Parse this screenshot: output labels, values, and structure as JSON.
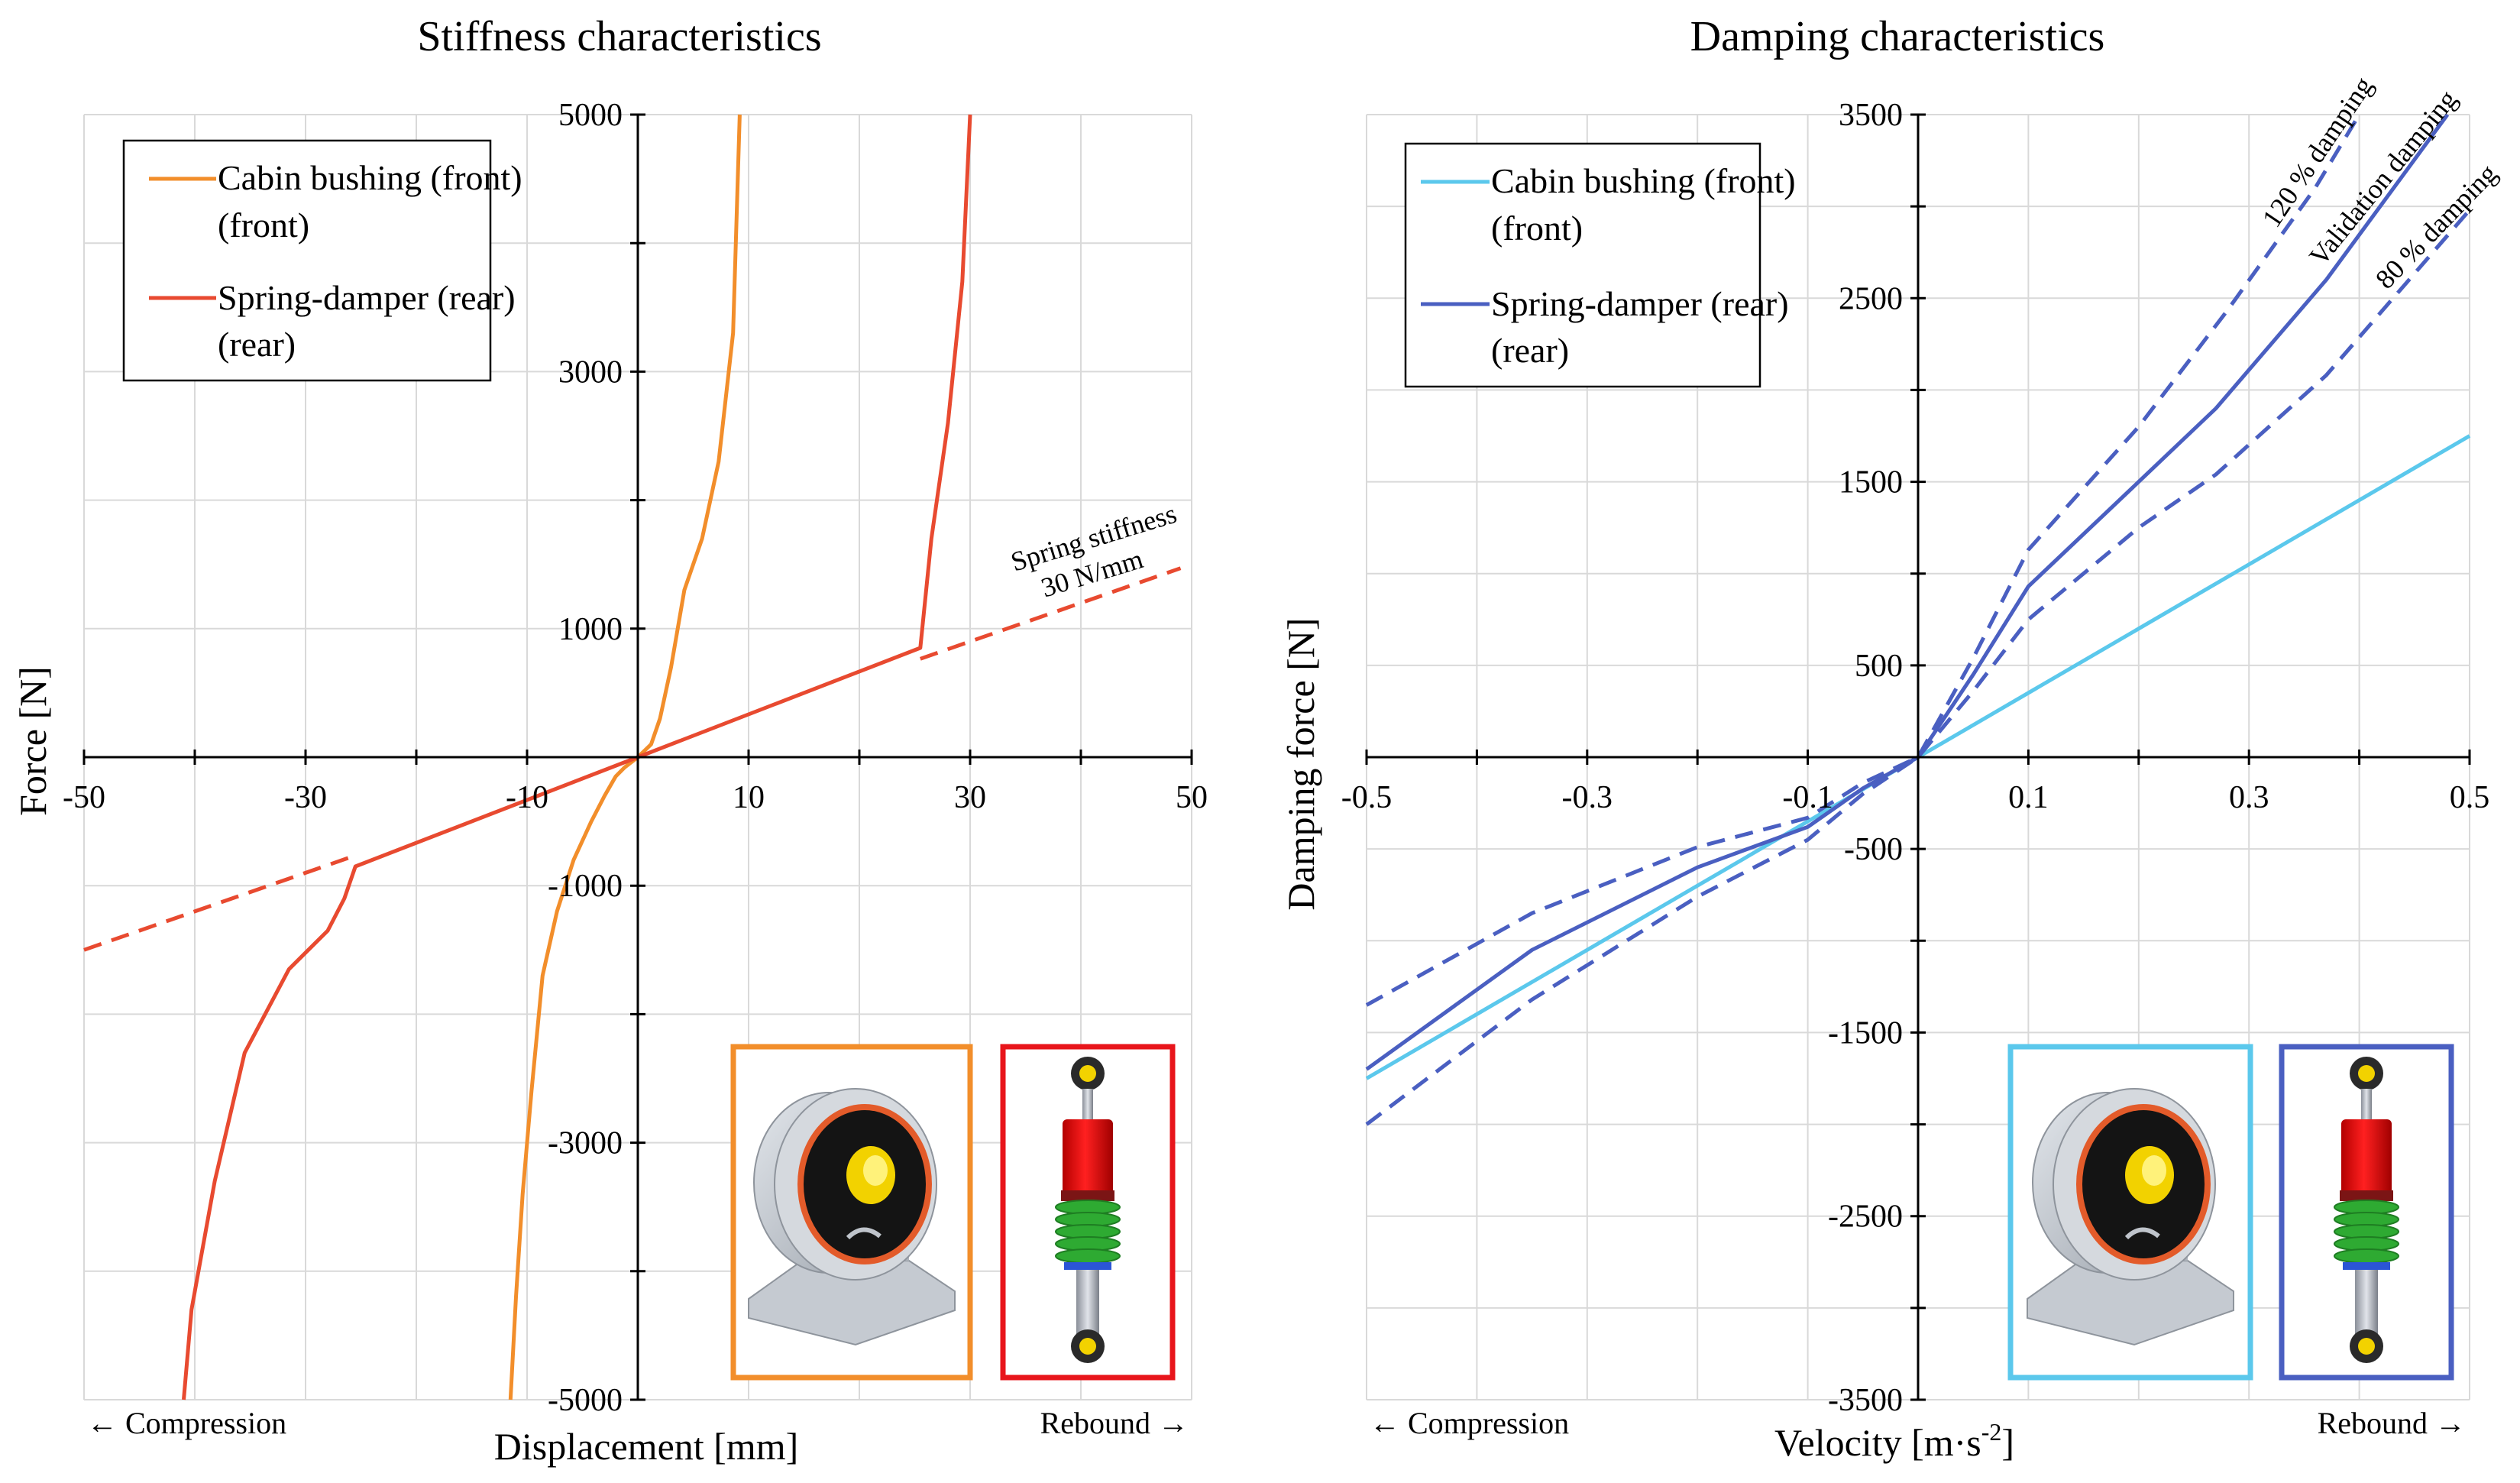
{
  "chart_data": [
    {
      "type": "line",
      "title": "Stiffness characteristics",
      "xlabel": "Displacement [mm]",
      "ylabel": "Force [N]",
      "xlim": [
        -50,
        50
      ],
      "ylim": [
        -5000,
        5000
      ],
      "xticks": [
        -50,
        -30,
        -10,
        10,
        30,
        50
      ],
      "xtick_labels": [
        "-50",
        "-30",
        "-10",
        "10",
        "30",
        "50"
      ],
      "yticks": [
        -5000,
        -3000,
        -1000,
        1000,
        3000,
        5000
      ],
      "ytick_labels": [
        "-5000",
        "-3000",
        "-1000",
        "1000",
        "3000",
        "5000"
      ],
      "x_minor_ticks": [
        -40,
        -20,
        0,
        20,
        40
      ],
      "y_minor_ticks": [
        -4000,
        -2000,
        0,
        2000,
        4000
      ],
      "grid": true,
      "direction_labels": {
        "left": "← Compression",
        "right": "Rebound →"
      },
      "legend": {
        "position": "top-left",
        "entries": [
          "Cabin bushing (front)",
          "Spring-damper (rear)"
        ]
      },
      "annotation": {
        "line1": "Spring stiffness",
        "line2": "30 N/mm"
      },
      "series": [
        {
          "name": "Cabin bushing (front)",
          "color": "#F28E2B",
          "dash": false,
          "x": [
            -11.5,
            -11.0,
            -10.4,
            -9.6,
            -8.6,
            -7.3,
            -5.8,
            -4.2,
            -3.0,
            -2.0,
            -1.2,
            0,
            1.2,
            2.0,
            3.0,
            4.2,
            5.8,
            7.3,
            8.6,
            9.2
          ],
          "y": [
            -5000,
            -4200,
            -3400,
            -2600,
            -1700,
            -1200,
            -800,
            -500,
            -300,
            -150,
            -80,
            0,
            100,
            300,
            700,
            1300,
            1700,
            2300,
            3300,
            5000
          ]
        },
        {
          "name": "Spring-damper (rear)",
          "color": "#E84A30",
          "dash": false,
          "x": [
            -41.0,
            -40.3,
            -38.2,
            -35.5,
            -31.5,
            -28.0,
            -26.5,
            -25.5,
            0,
            25.5,
            26.5,
            28.0,
            29.3,
            30.0
          ],
          "y": [
            -5000,
            -4300,
            -3300,
            -2300,
            -1650,
            -1350,
            -1100,
            -850,
            0,
            850,
            1700,
            2600,
            3700,
            5000
          ]
        },
        {
          "name": "Spring stiffness 30 N/mm",
          "color": "#E84A30",
          "dash": true,
          "x": [
            -50,
            -25.5
          ],
          "y": [
            -1500,
            -765
          ]
        },
        {
          "name": "Spring stiffness 30 N/mm (rebound)",
          "color": "#E84A30",
          "dash": true,
          "x": [
            25.5,
            49
          ],
          "y": [
            765,
            1470
          ]
        }
      ]
    },
    {
      "type": "line",
      "title": "Damping characteristics",
      "xlabel_main": "Velocity [m·s",
      "xlabel_sup": "-2",
      "xlabel_end": "]",
      "ylabel": "Damping force [N]",
      "xlim": [
        -0.5,
        0.5
      ],
      "ylim": [
        -3500,
        3500
      ],
      "xticks": [
        -0.5,
        -0.3,
        -0.1,
        0.1,
        0.3,
        0.5
      ],
      "xtick_labels": [
        "-0.5",
        "-0.3",
        "-0.1",
        "0.1",
        "0.3",
        "0.5"
      ],
      "yticks": [
        -3500,
        -2500,
        -1500,
        -500,
        500,
        1500,
        2500,
        3500
      ],
      "ytick_labels": [
        "-3500",
        "-2500",
        "-1500",
        "-500",
        "500",
        "1500",
        "2500",
        "3500"
      ],
      "x_minor_ticks": [
        -0.4,
        -0.2,
        0,
        0.2,
        0.4
      ],
      "y_minor_ticks": [
        -3000,
        -2000,
        -1000,
        0,
        1000,
        2000,
        3000
      ],
      "grid": true,
      "direction_labels": {
        "left": "← Compression",
        "right": "Rebound →"
      },
      "legend": {
        "position": "top-left",
        "entries": [
          "Cabin bushing (front)",
          "Spring-damper (rear)"
        ]
      },
      "annotations": [
        "120 % damping",
        "Validation damping",
        "80 % damping"
      ],
      "series": [
        {
          "name": "Cabin bushing (front)",
          "color": "#5BC8EC",
          "dash": false,
          "x": [
            -0.5,
            0.5
          ],
          "y": [
            -1750,
            1750
          ]
        },
        {
          "name": "Spring-damper (rear)",
          "color": "#4A5FC1",
          "dash": false,
          "x": [
            -0.5,
            -0.35,
            -0.2,
            -0.1,
            -0.05,
            0,
            0.05,
            0.1,
            0.2,
            0.27,
            0.37,
            0.48
          ],
          "y": [
            -1700,
            -1050,
            -600,
            -380,
            -170,
            0,
            450,
            930,
            1500,
            1900,
            2600,
            3500
          ]
        },
        {
          "name": "120 % damping",
          "color": "#4A5FC1",
          "dash": true,
          "x": [
            -0.5,
            -0.35,
            -0.2,
            -0.1,
            -0.05,
            0,
            0.05,
            0.1,
            0.2,
            0.28,
            0.36,
            0.4
          ],
          "y": [
            -1350,
            -850,
            -490,
            -330,
            -140,
            0,
            540,
            1130,
            1800,
            2430,
            3100,
            3500
          ]
        },
        {
          "name": "80 % damping",
          "color": "#4A5FC1",
          "dash": true,
          "x": [
            -0.5,
            -0.35,
            -0.2,
            -0.1,
            -0.05,
            0,
            0.05,
            0.1,
            0.2,
            0.27,
            0.37,
            0.5
          ],
          "y": [
            -2000,
            -1320,
            -760,
            -450,
            -200,
            0,
            360,
            750,
            1250,
            1540,
            2080,
            2980
          ]
        }
      ]
    }
  ]
}
